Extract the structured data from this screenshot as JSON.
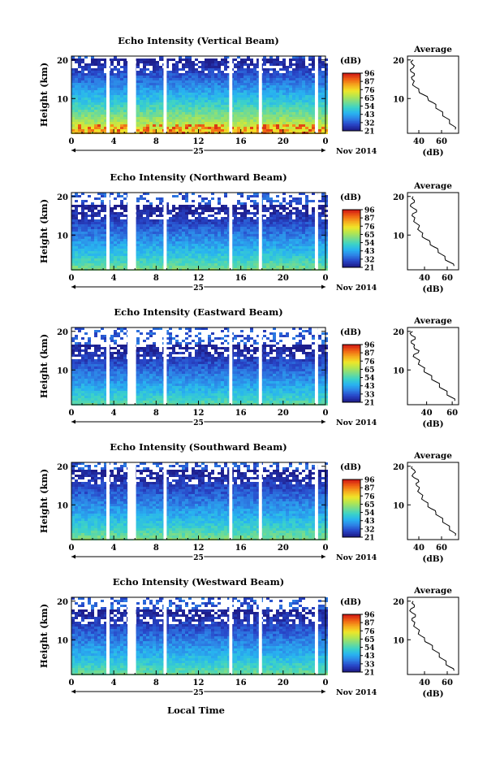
{
  "colors": {
    "colormap": [
      "#1e1e8c",
      "#2846c8",
      "#2d82e6",
      "#28b4f0",
      "#3cd2c8",
      "#78dc8c",
      "#b4e650",
      "#f0e628",
      "#f5aa1e",
      "#f06414",
      "#d21e14"
    ],
    "background": "#ffffff",
    "gap": "#ffffff"
  },
  "figure": {
    "x_axis_title": "Local Time",
    "x_ticks": [
      "0",
      "4",
      "8",
      "12",
      "16",
      "20",
      "0"
    ],
    "date_day": "25",
    "date_month_year": "Nov 2014",
    "y_axis_title": "Height (km)",
    "y_ticks": [
      "20",
      "10"
    ],
    "colorbar_title": "(dB)",
    "average_title": "Average",
    "average_xlabel": "(dB)"
  },
  "chart_data": [
    {
      "type": "heatmap",
      "title": "Echo Intensity (Vertical Beam)",
      "x_range_hours": [
        0,
        24
      ],
      "ylim_km": [
        1,
        21
      ],
      "colorbar_ticks": [
        "96",
        "87",
        "76",
        "65",
        "54",
        "43",
        "32",
        "21"
      ],
      "colorbar_range": [
        21,
        96
      ],
      "top_height_km": 20,
      "surface_db": 80,
      "hot_surface": true,
      "data_gaps_hours": [
        [
          3.3,
          3.6
        ],
        [
          5.3,
          6.1
        ],
        [
          8.7,
          9.0
        ],
        [
          14.9,
          15.2
        ],
        [
          17.7,
          18.0
        ],
        [
          23.0,
          23.3
        ]
      ],
      "profile": {
        "type": "line",
        "xlim_db": [
          30,
          75
        ],
        "x_ticks": [
          "40",
          "60"
        ],
        "x_tick_values": [
          40,
          60
        ],
        "heights_km": [
          2,
          3,
          4,
          5,
          6,
          7,
          8,
          9,
          10,
          11,
          12,
          13,
          14,
          15,
          16,
          17,
          18,
          19,
          20
        ],
        "values_db": [
          72,
          70,
          67,
          64,
          61,
          58,
          55,
          52,
          48,
          44,
          40,
          37,
          35,
          34,
          36,
          33,
          35,
          34,
          35
        ]
      }
    },
    {
      "type": "heatmap",
      "title": "Echo Intensity (Northward Beam)",
      "x_range_hours": [
        0,
        24
      ],
      "ylim_km": [
        1,
        21
      ],
      "colorbar_ticks": [
        "96",
        "87",
        "76",
        "65",
        "54",
        "43",
        "32",
        "21"
      ],
      "colorbar_range": [
        21,
        96
      ],
      "top_height_km": 17,
      "surface_db": 62,
      "hot_surface": false,
      "data_gaps_hours": [
        [
          3.3,
          3.6
        ],
        [
          5.3,
          6.1
        ],
        [
          8.7,
          9.0
        ],
        [
          14.9,
          15.2
        ],
        [
          17.7,
          18.0
        ],
        [
          23.0,
          23.3
        ]
      ],
      "profile": {
        "type": "line",
        "xlim_db": [
          25,
          70
        ],
        "x_ticks": [
          "40",
          "60"
        ],
        "x_tick_values": [
          40,
          60
        ],
        "heights_km": [
          2,
          3,
          4,
          5,
          6,
          7,
          8,
          9,
          10,
          11,
          12,
          13,
          14,
          15,
          16,
          17,
          18,
          19,
          20
        ],
        "values_db": [
          66,
          62,
          58,
          55,
          52,
          48,
          45,
          41,
          38,
          36,
          35,
          33,
          31,
          29,
          33,
          30,
          28,
          31,
          30
        ]
      }
    },
    {
      "type": "heatmap",
      "title": "Echo Intensity (Eastward Beam)",
      "x_range_hours": [
        0,
        24
      ],
      "ylim_km": [
        1,
        21
      ],
      "colorbar_ticks": [
        "96",
        "87",
        "76",
        "65",
        "54",
        "43",
        "33",
        "21"
      ],
      "colorbar_range": [
        21,
        96
      ],
      "top_height_km": 16,
      "surface_db": 58,
      "hot_surface": false,
      "data_gaps_hours": [
        [
          3.3,
          3.6
        ],
        [
          5.3,
          6.1
        ],
        [
          8.7,
          9.0
        ],
        [
          14.9,
          15.2
        ],
        [
          17.7,
          18.0
        ],
        [
          23.0,
          23.3
        ]
      ],
      "profile": {
        "type": "line",
        "xlim_db": [
          25,
          65
        ],
        "x_ticks": [
          "40",
          "60"
        ],
        "x_tick_values": [
          40,
          60
        ],
        "heights_km": [
          2,
          3,
          4,
          5,
          6,
          7,
          8,
          9,
          10,
          11,
          12,
          13,
          14,
          15,
          16,
          17,
          18,
          19,
          20
        ],
        "values_db": [
          62,
          59,
          56,
          53,
          50,
          47,
          44,
          41,
          38,
          36,
          34,
          32,
          30,
          34,
          30,
          28,
          31,
          28,
          29
        ]
      }
    },
    {
      "type": "heatmap",
      "title": "Echo Intensity (Southward Beam)",
      "x_range_hours": [
        0,
        24
      ],
      "ylim_km": [
        1,
        21
      ],
      "colorbar_ticks": [
        "96",
        "87",
        "76",
        "65",
        "54",
        "43",
        "32",
        "21"
      ],
      "colorbar_range": [
        21,
        96
      ],
      "top_height_km": 18.5,
      "surface_db": 62,
      "hot_surface": false,
      "data_gaps_hours": [
        [
          3.3,
          3.6
        ],
        [
          5.3,
          6.1
        ],
        [
          8.7,
          9.0
        ],
        [
          14.9,
          15.2
        ],
        [
          17.7,
          18.0
        ],
        [
          23.0,
          23.3
        ]
      ],
      "profile": {
        "type": "line",
        "xlim_db": [
          30,
          75
        ],
        "x_ticks": [
          "40",
          "60"
        ],
        "x_tick_values": [
          40,
          60
        ],
        "heights_km": [
          2,
          3,
          4,
          5,
          6,
          7,
          8,
          9,
          10,
          11,
          12,
          13,
          14,
          15,
          16,
          17,
          18,
          19,
          20
        ],
        "values_db": [
          72,
          70,
          67,
          64,
          61,
          58,
          55,
          51,
          48,
          45,
          43,
          41,
          40,
          38,
          40,
          36,
          35,
          36,
          34
        ]
      }
    },
    {
      "type": "heatmap",
      "title": "Echo Intensity (Westward Beam)",
      "x_range_hours": [
        0,
        24
      ],
      "ylim_km": [
        1,
        21
      ],
      "colorbar_ticks": [
        "96",
        "87",
        "76",
        "65",
        "54",
        "43",
        "33",
        "21"
      ],
      "colorbar_range": [
        21,
        96
      ],
      "top_height_km": 17.5,
      "surface_db": 60,
      "hot_surface": false,
      "data_gaps_hours": [
        [
          3.3,
          3.6
        ],
        [
          5.3,
          6.1
        ],
        [
          8.7,
          9.0
        ],
        [
          14.9,
          15.2
        ],
        [
          17.7,
          18.0
        ],
        [
          23.0,
          23.3
        ]
      ],
      "profile": {
        "type": "line",
        "xlim_db": [
          25,
          70
        ],
        "x_ticks": [
          "40",
          "60"
        ],
        "x_tick_values": [
          40,
          60
        ],
        "heights_km": [
          2,
          3,
          4,
          5,
          6,
          7,
          8,
          9,
          10,
          11,
          12,
          13,
          14,
          15,
          16,
          17,
          18,
          19,
          20
        ],
        "values_db": [
          66,
          62,
          59,
          56,
          53,
          50,
          47,
          44,
          40,
          37,
          35,
          33,
          31,
          29,
          32,
          29,
          28,
          31,
          30
        ]
      }
    }
  ]
}
